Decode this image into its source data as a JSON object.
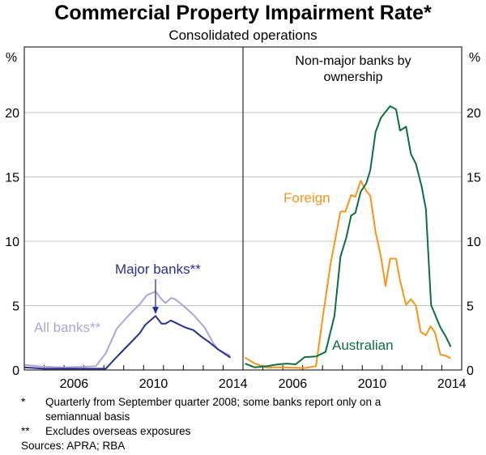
{
  "chart_data": [
    {
      "type": "line",
      "title": "Commercial Property Impairment Rate*",
      "subtitle": "Consolidated operations",
      "ylabel": "%",
      "ylim": [
        0,
        20
      ],
      "xlim": [
        2004,
        2015
      ],
      "yticks": [
        "0",
        "5",
        "10",
        "15",
        "20"
      ],
      "xticks": [
        "2006",
        "2010",
        "2014"
      ],
      "grid": true,
      "panel_title": "",
      "series": [
        {
          "name": "All banks**",
          "color": "#aaa6d4",
          "points": [
            [
              2004,
              0.4
            ],
            [
              2005,
              0.25
            ],
            [
              2006,
              0.2
            ],
            [
              2007,
              0.25
            ],
            [
              2007.6,
              0.3
            ],
            [
              2008.1,
              1.3
            ],
            [
              2008.65,
              3.2
            ],
            [
              2009.1,
              4.0
            ],
            [
              2009.5,
              4.65
            ],
            [
              2009.8,
              5.1
            ],
            [
              2010.15,
              5.8
            ],
            [
              2010.6,
              6.1
            ],
            [
              2010.9,
              5.5
            ],
            [
              2011.1,
              5.2
            ],
            [
              2011.4,
              5.6
            ],
            [
              2011.6,
              5.5
            ],
            [
              2012.1,
              4.85
            ],
            [
              2012.5,
              4.3
            ],
            [
              2013.07,
              3.3
            ],
            [
              2013.5,
              2.1
            ],
            [
              2013.75,
              1.6
            ],
            [
              2014.37,
              1.1
            ]
          ]
        },
        {
          "name": "Major banks**",
          "color": "#2b2f8f",
          "points": [
            [
              2004,
              0.2
            ],
            [
              2005,
              0.1
            ],
            [
              2006,
              0.1
            ],
            [
              2007,
              0.1
            ],
            [
              2008.1,
              0.1
            ],
            [
              2008.7,
              1.1
            ],
            [
              2009.4,
              2.2
            ],
            [
              2009.8,
              2.85
            ],
            [
              2010.08,
              3.5
            ],
            [
              2010.6,
              4.2
            ],
            [
              2010.9,
              3.6
            ],
            [
              2011.1,
              3.6
            ],
            [
              2011.37,
              3.85
            ],
            [
              2012.1,
              3.3
            ],
            [
              2012.5,
              3.1
            ],
            [
              2012.9,
              2.6
            ],
            [
              2013.35,
              2.1
            ],
            [
              2013.75,
              1.6
            ],
            [
              2014.37,
              0.96
            ]
          ]
        }
      ]
    },
    {
      "type": "line",
      "panel_title": "Non-major banks by ownership",
      "ylabel": "%",
      "ylim": [
        0,
        20
      ],
      "xlim": [
        2004,
        2015
      ],
      "yticks": [
        "0",
        "5",
        "10",
        "15",
        "20"
      ],
      "xticks": [
        "2006",
        "2010",
        "2014"
      ],
      "grid": true,
      "series": [
        {
          "name": "Foreign",
          "color": "#f7941d",
          "points": [
            [
              2004.1,
              0.96
            ],
            [
              2004.6,
              0.5
            ],
            [
              2005.15,
              0.2
            ],
            [
              2006.0,
              0.2
            ],
            [
              2007.1,
              0.15
            ],
            [
              2007.67,
              0.3
            ],
            [
              2008.08,
              4.8
            ],
            [
              2008.4,
              8.2
            ],
            [
              2008.9,
              12.3
            ],
            [
              2009.15,
              12.3
            ],
            [
              2009.44,
              13.6
            ],
            [
              2009.65,
              13.45
            ],
            [
              2009.92,
              14.7
            ],
            [
              2010.2,
              13.9
            ],
            [
              2010.4,
              13.55
            ],
            [
              2010.67,
              10.7
            ],
            [
              2010.94,
              8.8
            ],
            [
              2011.17,
              6.5
            ],
            [
              2011.4,
              8.65
            ],
            [
              2011.7,
              8.65
            ],
            [
              2011.9,
              6.95
            ],
            [
              2012.2,
              5.05
            ],
            [
              2012.44,
              5.5
            ],
            [
              2012.7,
              5.0
            ],
            [
              2012.94,
              2.95
            ],
            [
              2013.2,
              2.7
            ],
            [
              2013.43,
              3.4
            ],
            [
              2013.66,
              2.9
            ],
            [
              2013.93,
              1.2
            ],
            [
              2014.2,
              1.1
            ],
            [
              2014.45,
              0.9
            ]
          ]
        },
        {
          "name": "Australian",
          "color": "#0e6e3e",
          "points": [
            [
              2004.1,
              0.5
            ],
            [
              2004.6,
              0.2
            ],
            [
              2005.2,
              0.3
            ],
            [
              2005.77,
              0.44
            ],
            [
              2006.2,
              0.5
            ],
            [
              2006.65,
              0.44
            ],
            [
              2007.1,
              1.0
            ],
            [
              2007.67,
              1.05
            ],
            [
              2008.15,
              1.4
            ],
            [
              2008.6,
              4.2
            ],
            [
              2008.9,
              8.8
            ],
            [
              2009.2,
              10.3
            ],
            [
              2009.44,
              12.0
            ],
            [
              2009.65,
              12.2
            ],
            [
              2009.92,
              13.85
            ],
            [
              2010.2,
              14.5
            ],
            [
              2010.4,
              15.5
            ],
            [
              2010.67,
              18.5
            ],
            [
              2010.94,
              19.6
            ],
            [
              2011.4,
              20.5
            ],
            [
              2011.7,
              20.25
            ],
            [
              2011.9,
              18.6
            ],
            [
              2012.2,
              18.9
            ],
            [
              2012.44,
              16.8
            ],
            [
              2012.7,
              16.0
            ],
            [
              2012.98,
              14.3
            ],
            [
              2013.2,
              12.5
            ],
            [
              2013.46,
              5.05
            ],
            [
              2013.93,
              3.3
            ],
            [
              2014.2,
              2.6
            ],
            [
              2014.45,
              1.8
            ]
          ]
        }
      ]
    }
  ],
  "footnotes": [
    {
      "mark": "*",
      "text": "Quarterly from September quarter 2008; some banks report only on a"
    },
    {
      "mark": "",
      "text": "semiannual basis"
    },
    {
      "mark": "**",
      "text": "Excludes overseas exposures"
    }
  ],
  "sources": "Sources: APRA; RBA"
}
